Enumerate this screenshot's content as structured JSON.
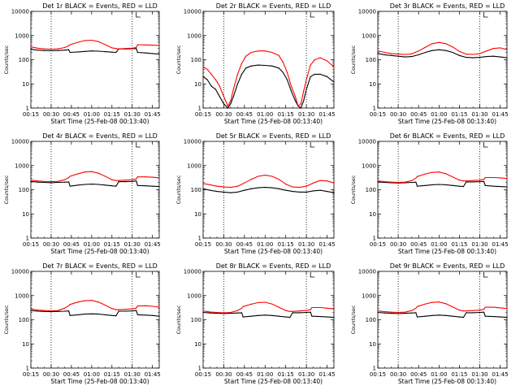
{
  "figure": {
    "colors": {
      "events": "#000000",
      "lld": "#ff0000",
      "axes": "#000000",
      "markers": "#000000"
    }
  },
  "chart_data": [
    {
      "type": "line",
      "scale_y": "log",
      "ylim": [
        1,
        10000
      ],
      "xlim": [
        "00:15",
        "01:50"
      ],
      "title": "Det 1r BLACK = Events, RED = LLD",
      "xlabel": "Start Time (25-Feb-08 00:13:40)",
      "ylabel": "Counts/sec",
      "x_ticks": [
        "00:15",
        "00:30",
        "00:45",
        "01:00",
        "01:15",
        "01:30",
        "01:45"
      ],
      "y_ticks": [
        "1",
        "10",
        "100",
        "1000",
        "10000"
      ],
      "vlines": [
        "00:30",
        "01:30"
      ],
      "bracket": "01:33",
      "x": [
        "00:15",
        "00:20",
        "00:25",
        "00:30",
        "00:35",
        "00:40",
        "00:43",
        "00:44",
        "00:50",
        "00:55",
        "01:00",
        "01:05",
        "01:10",
        "01:15",
        "01:18",
        "01:20",
        "01:25",
        "01:30",
        "01:33",
        "01:34",
        "01:40",
        "01:45",
        "01:50"
      ],
      "series": [
        {
          "values": [
            270,
            250,
            240,
            235,
            240,
            250,
            260,
            200,
            210,
            220,
            230,
            225,
            215,
            205,
            200,
            280,
            280,
            285,
            290,
            200,
            190,
            180,
            170
          ]
        },
        {
          "values": [
            340,
            300,
            280,
            270,
            280,
            320,
            380,
            420,
            530,
            620,
            640,
            560,
            420,
            310,
            290,
            280,
            290,
            300,
            320,
            420,
            410,
            400,
            390
          ]
        }
      ]
    },
    {
      "type": "line",
      "scale_y": "log",
      "ylim": [
        1,
        10000
      ],
      "xlim": [
        "00:15",
        "01:50"
      ],
      "title": "Det 2r BLACK = Events, RED = LLD",
      "xlabel": "Start Time (25-Feb-08 00:13:40)",
      "ylabel": "Counts/sec",
      "x_ticks": [
        "00:15",
        "00:30",
        "00:45",
        "01:00",
        "01:15",
        "01:30",
        "01:45"
      ],
      "y_ticks": [
        "1",
        "10",
        "100",
        "1000",
        "10000"
      ],
      "vlines": [
        "00:30",
        "01:30"
      ],
      "bracket": "01:33",
      "x": [
        "00:15",
        "00:18",
        "00:21",
        "00:24",
        "00:27",
        "00:30",
        "00:33",
        "00:35",
        "00:37",
        "00:40",
        "00:43",
        "00:46",
        "00:50",
        "00:55",
        "01:00",
        "01:05",
        "01:10",
        "01:13",
        "01:16",
        "01:19",
        "01:22",
        "01:24",
        "01:26",
        "01:28",
        "01:30",
        "01:33",
        "01:36",
        "01:40",
        "01:45",
        "01:50"
      ],
      "series": [
        {
          "values": [
            20,
            15,
            8,
            6,
            3,
            1.5,
            1,
            1.5,
            3,
            10,
            25,
            45,
            55,
            60,
            58,
            55,
            45,
            30,
            15,
            5,
            2,
            1.2,
            1,
            2,
            6,
            20,
            25,
            25,
            20,
            12
          ]
        },
        {
          "values": [
            50,
            40,
            25,
            15,
            8,
            3,
            1.2,
            2,
            6,
            25,
            70,
            140,
            200,
            230,
            230,
            200,
            150,
            80,
            30,
            8,
            3,
            1.2,
            1.5,
            5,
            15,
            60,
            100,
            120,
            90,
            50
          ]
        }
      ]
    },
    {
      "type": "line",
      "scale_y": "log",
      "ylim": [
        1,
        10000
      ],
      "xlim": [
        "00:15",
        "01:50"
      ],
      "title": "Det 3r BLACK = Events, RED = LLD",
      "xlabel": "Start Time (25-Feb-08 00:13:40)",
      "ylabel": "Counts/sec",
      "x_ticks": [
        "00:15",
        "00:30",
        "00:45",
        "01:00",
        "01:15",
        "01:30",
        "01:45"
      ],
      "y_ticks": [
        "1",
        "10",
        "100",
        "1000",
        "10000"
      ],
      "vlines": [
        "00:30",
        "01:30"
      ],
      "bracket": "01:33",
      "x": [
        "00:15",
        "00:20",
        "00:25",
        "00:30",
        "00:35",
        "00:40",
        "00:45",
        "00:50",
        "00:55",
        "01:00",
        "01:05",
        "01:10",
        "01:15",
        "01:20",
        "01:25",
        "01:30",
        "01:35",
        "01:40",
        "01:45",
        "01:50"
      ],
      "series": [
        {
          "values": [
            180,
            160,
            150,
            140,
            130,
            135,
            160,
            200,
            240,
            260,
            240,
            200,
            150,
            125,
            120,
            125,
            135,
            140,
            130,
            120
          ]
        },
        {
          "values": [
            230,
            200,
            180,
            170,
            165,
            175,
            230,
            330,
            460,
            520,
            460,
            340,
            220,
            170,
            165,
            180,
            230,
            290,
            310,
            260
          ]
        }
      ]
    },
    {
      "type": "line",
      "scale_y": "log",
      "ylim": [
        1,
        10000
      ],
      "xlim": [
        "00:15",
        "01:50"
      ],
      "title": "Det 4r BLACK = Events, RED = LLD",
      "xlabel": "Start Time (25-Feb-08 00:13:40)",
      "ylabel": "Counts/sec",
      "x_ticks": [
        "00:15",
        "00:30",
        "00:45",
        "01:00",
        "01:15",
        "01:30",
        "01:45"
      ],
      "y_ticks": [
        "1",
        "10",
        "100",
        "1000",
        "10000"
      ],
      "vlines": [
        "00:30",
        "01:30"
      ],
      "bracket": "01:33",
      "x": [
        "00:15",
        "00:20",
        "00:25",
        "00:30",
        "00:35",
        "00:40",
        "00:43",
        "00:44",
        "00:50",
        "00:55",
        "01:00",
        "01:05",
        "01:10",
        "01:15",
        "01:18",
        "01:20",
        "01:25",
        "01:30",
        "01:33",
        "01:34",
        "01:40",
        "01:45",
        "01:50"
      ],
      "series": [
        {
          "values": [
            220,
            205,
            200,
            195,
            200,
            205,
            210,
            140,
            155,
            165,
            170,
            165,
            155,
            145,
            140,
            215,
            215,
            220,
            230,
            150,
            145,
            140,
            135
          ]
        },
        {
          "values": [
            250,
            230,
            220,
            215,
            220,
            260,
            320,
            360,
            460,
            540,
            560,
            480,
            360,
            260,
            240,
            240,
            250,
            260,
            280,
            340,
            340,
            330,
            310
          ]
        }
      ]
    },
    {
      "type": "line",
      "scale_y": "log",
      "ylim": [
        1,
        10000
      ],
      "xlim": [
        "00:15",
        "01:50"
      ],
      "title": "Det 5r BLACK = Events, RED = LLD",
      "xlabel": "Start Time (25-Feb-08 00:13:40)",
      "ylabel": "Counts/sec",
      "x_ticks": [
        "00:15",
        "00:30",
        "00:45",
        "01:00",
        "01:15",
        "01:30",
        "01:45"
      ],
      "y_ticks": [
        "1",
        "10",
        "100",
        "1000",
        "10000"
      ],
      "vlines": [
        "00:30",
        "01:30"
      ],
      "bracket": "01:33",
      "x": [
        "00:15",
        "00:20",
        "00:25",
        "00:30",
        "00:35",
        "00:40",
        "00:45",
        "00:50",
        "00:55",
        "01:00",
        "01:05",
        "01:10",
        "01:15",
        "01:20",
        "01:25",
        "01:30",
        "01:35",
        "01:40",
        "01:45",
        "01:50"
      ],
      "series": [
        {
          "values": [
            110,
            95,
            85,
            80,
            75,
            80,
            95,
            110,
            120,
            125,
            120,
            110,
            95,
            85,
            80,
            80,
            90,
            95,
            85,
            75
          ]
        },
        {
          "values": [
            180,
            160,
            140,
            130,
            125,
            140,
            190,
            270,
            360,
            400,
            360,
            270,
            170,
            130,
            125,
            140,
            190,
            240,
            230,
            190
          ]
        }
      ]
    },
    {
      "type": "line",
      "scale_y": "log",
      "ylim": [
        1,
        10000
      ],
      "xlim": [
        "00:15",
        "01:50"
      ],
      "title": "Det 6r BLACK = Events, RED = LLD",
      "xlabel": "Start Time (25-Feb-08 00:13:40)",
      "ylabel": "Counts/sec",
      "x_ticks": [
        "00:15",
        "00:30",
        "00:45",
        "01:00",
        "01:15",
        "01:30",
        "01:45"
      ],
      "y_ticks": [
        "1",
        "10",
        "100",
        "1000",
        "10000"
      ],
      "vlines": [
        "00:30",
        "01:30"
      ],
      "bracket": "01:33",
      "x": [
        "00:15",
        "00:20",
        "00:25",
        "00:30",
        "00:35",
        "00:40",
        "00:43",
        "00:44",
        "00:50",
        "00:55",
        "01:00",
        "01:05",
        "01:10",
        "01:15",
        "01:18",
        "01:20",
        "01:25",
        "01:30",
        "01:33",
        "01:34",
        "01:40",
        "01:45",
        "01:50"
      ],
      "series": [
        {
          "values": [
            210,
            200,
            195,
            190,
            195,
            200,
            205,
            140,
            150,
            160,
            165,
            160,
            150,
            140,
            135,
            210,
            210,
            215,
            220,
            150,
            140,
            135,
            130
          ]
        },
        {
          "values": [
            230,
            215,
            205,
            200,
            205,
            240,
            300,
            350,
            450,
            520,
            540,
            460,
            340,
            250,
            230,
            230,
            240,
            250,
            270,
            320,
            320,
            310,
            290
          ]
        }
      ]
    },
    {
      "type": "line",
      "scale_y": "log",
      "ylim": [
        1,
        10000
      ],
      "xlim": [
        "00:15",
        "01:50"
      ],
      "title": "Det 7r BLACK = Events, RED = LLD",
      "xlabel": "Start Time (25-Feb-08 00:13:40)",
      "ylabel": "Counts/sec",
      "x_ticks": [
        "00:15",
        "00:30",
        "00:45",
        "01:00",
        "01:15",
        "01:30",
        "01:45"
      ],
      "y_ticks": [
        "1",
        "10",
        "100",
        "1000",
        "10000"
      ],
      "vlines": [
        "00:30",
        "01:30"
      ],
      "bracket": "01:33",
      "x": [
        "00:15",
        "00:20",
        "00:25",
        "00:30",
        "00:35",
        "00:40",
        "00:43",
        "00:44",
        "00:50",
        "00:55",
        "01:00",
        "01:05",
        "01:10",
        "01:15",
        "01:18",
        "01:20",
        "01:25",
        "01:30",
        "01:33",
        "01:34",
        "01:40",
        "01:45",
        "01:50"
      ],
      "series": [
        {
          "values": [
            240,
            225,
            220,
            215,
            220,
            225,
            230,
            150,
            160,
            170,
            175,
            170,
            160,
            150,
            145,
            225,
            225,
            230,
            240,
            160,
            155,
            150,
            140
          ]
        },
        {
          "values": [
            280,
            250,
            240,
            235,
            240,
            300,
            380,
            430,
            540,
            610,
            630,
            540,
            400,
            290,
            260,
            260,
            270,
            280,
            300,
            370,
            380,
            360,
            330
          ]
        }
      ]
    },
    {
      "type": "line",
      "scale_y": "log",
      "ylim": [
        1,
        10000
      ],
      "xlim": [
        "00:15",
        "01:50"
      ],
      "title": "Det 8r BLACK = Events, RED = LLD",
      "xlabel": "Start Time (25-Feb-08 00:13:40)",
      "ylabel": "Counts/sec",
      "x_ticks": [
        "00:15",
        "00:30",
        "00:45",
        "01:00",
        "01:15",
        "01:30",
        "01:45"
      ],
      "y_ticks": [
        "1",
        "10",
        "100",
        "1000",
        "10000"
      ],
      "vlines": [
        "00:30",
        "01:30"
      ],
      "bracket": "01:33",
      "x": [
        "00:15",
        "00:20",
        "00:25",
        "00:30",
        "00:35",
        "00:40",
        "00:43",
        "00:44",
        "00:50",
        "00:55",
        "01:00",
        "01:05",
        "01:10",
        "01:15",
        "01:18",
        "01:20",
        "01:25",
        "01:30",
        "01:33",
        "01:34",
        "01:40",
        "01:45",
        "01:50"
      ],
      "series": [
        {
          "values": [
            200,
            190,
            185,
            180,
            185,
            190,
            195,
            130,
            140,
            150,
            155,
            150,
            140,
            130,
            125,
            195,
            195,
            200,
            205,
            140,
            135,
            130,
            125
          ]
        },
        {
          "values": [
            230,
            210,
            200,
            195,
            200,
            240,
            300,
            350,
            440,
            510,
            530,
            450,
            330,
            240,
            220,
            220,
            230,
            240,
            260,
            320,
            320,
            300,
            280
          ]
        }
      ]
    },
    {
      "type": "line",
      "scale_y": "log",
      "ylim": [
        1,
        10000
      ],
      "xlim": [
        "00:15",
        "01:50"
      ],
      "title": "Det 9r BLACK = Events, RED = LLD",
      "xlabel": "Start Time (25-Feb-08 00:13:40)",
      "ylabel": "Counts/sec",
      "x_ticks": [
        "00:15",
        "00:30",
        "00:45",
        "01:00",
        "01:15",
        "01:30",
        "01:45"
      ],
      "y_ticks": [
        "1",
        "10",
        "100",
        "1000",
        "10000"
      ],
      "vlines": [
        "00:30",
        "01:30"
      ],
      "bracket": "01:33",
      "x": [
        "00:15",
        "00:20",
        "00:25",
        "00:30",
        "00:35",
        "00:40",
        "00:43",
        "00:44",
        "00:50",
        "00:55",
        "01:00",
        "01:05",
        "01:10",
        "01:15",
        "01:18",
        "01:20",
        "01:25",
        "01:30",
        "01:33",
        "01:34",
        "01:40",
        "01:45",
        "01:50"
      ],
      "series": [
        {
          "values": [
            200,
            190,
            185,
            180,
            185,
            190,
            195,
            130,
            140,
            150,
            155,
            150,
            140,
            130,
            125,
            195,
            195,
            200,
            205,
            140,
            135,
            130,
            125
          ]
        },
        {
          "values": [
            230,
            215,
            205,
            200,
            205,
            240,
            300,
            350,
            450,
            520,
            540,
            460,
            340,
            250,
            230,
            230,
            240,
            250,
            270,
            330,
            330,
            310,
            290
          ]
        }
      ]
    }
  ]
}
